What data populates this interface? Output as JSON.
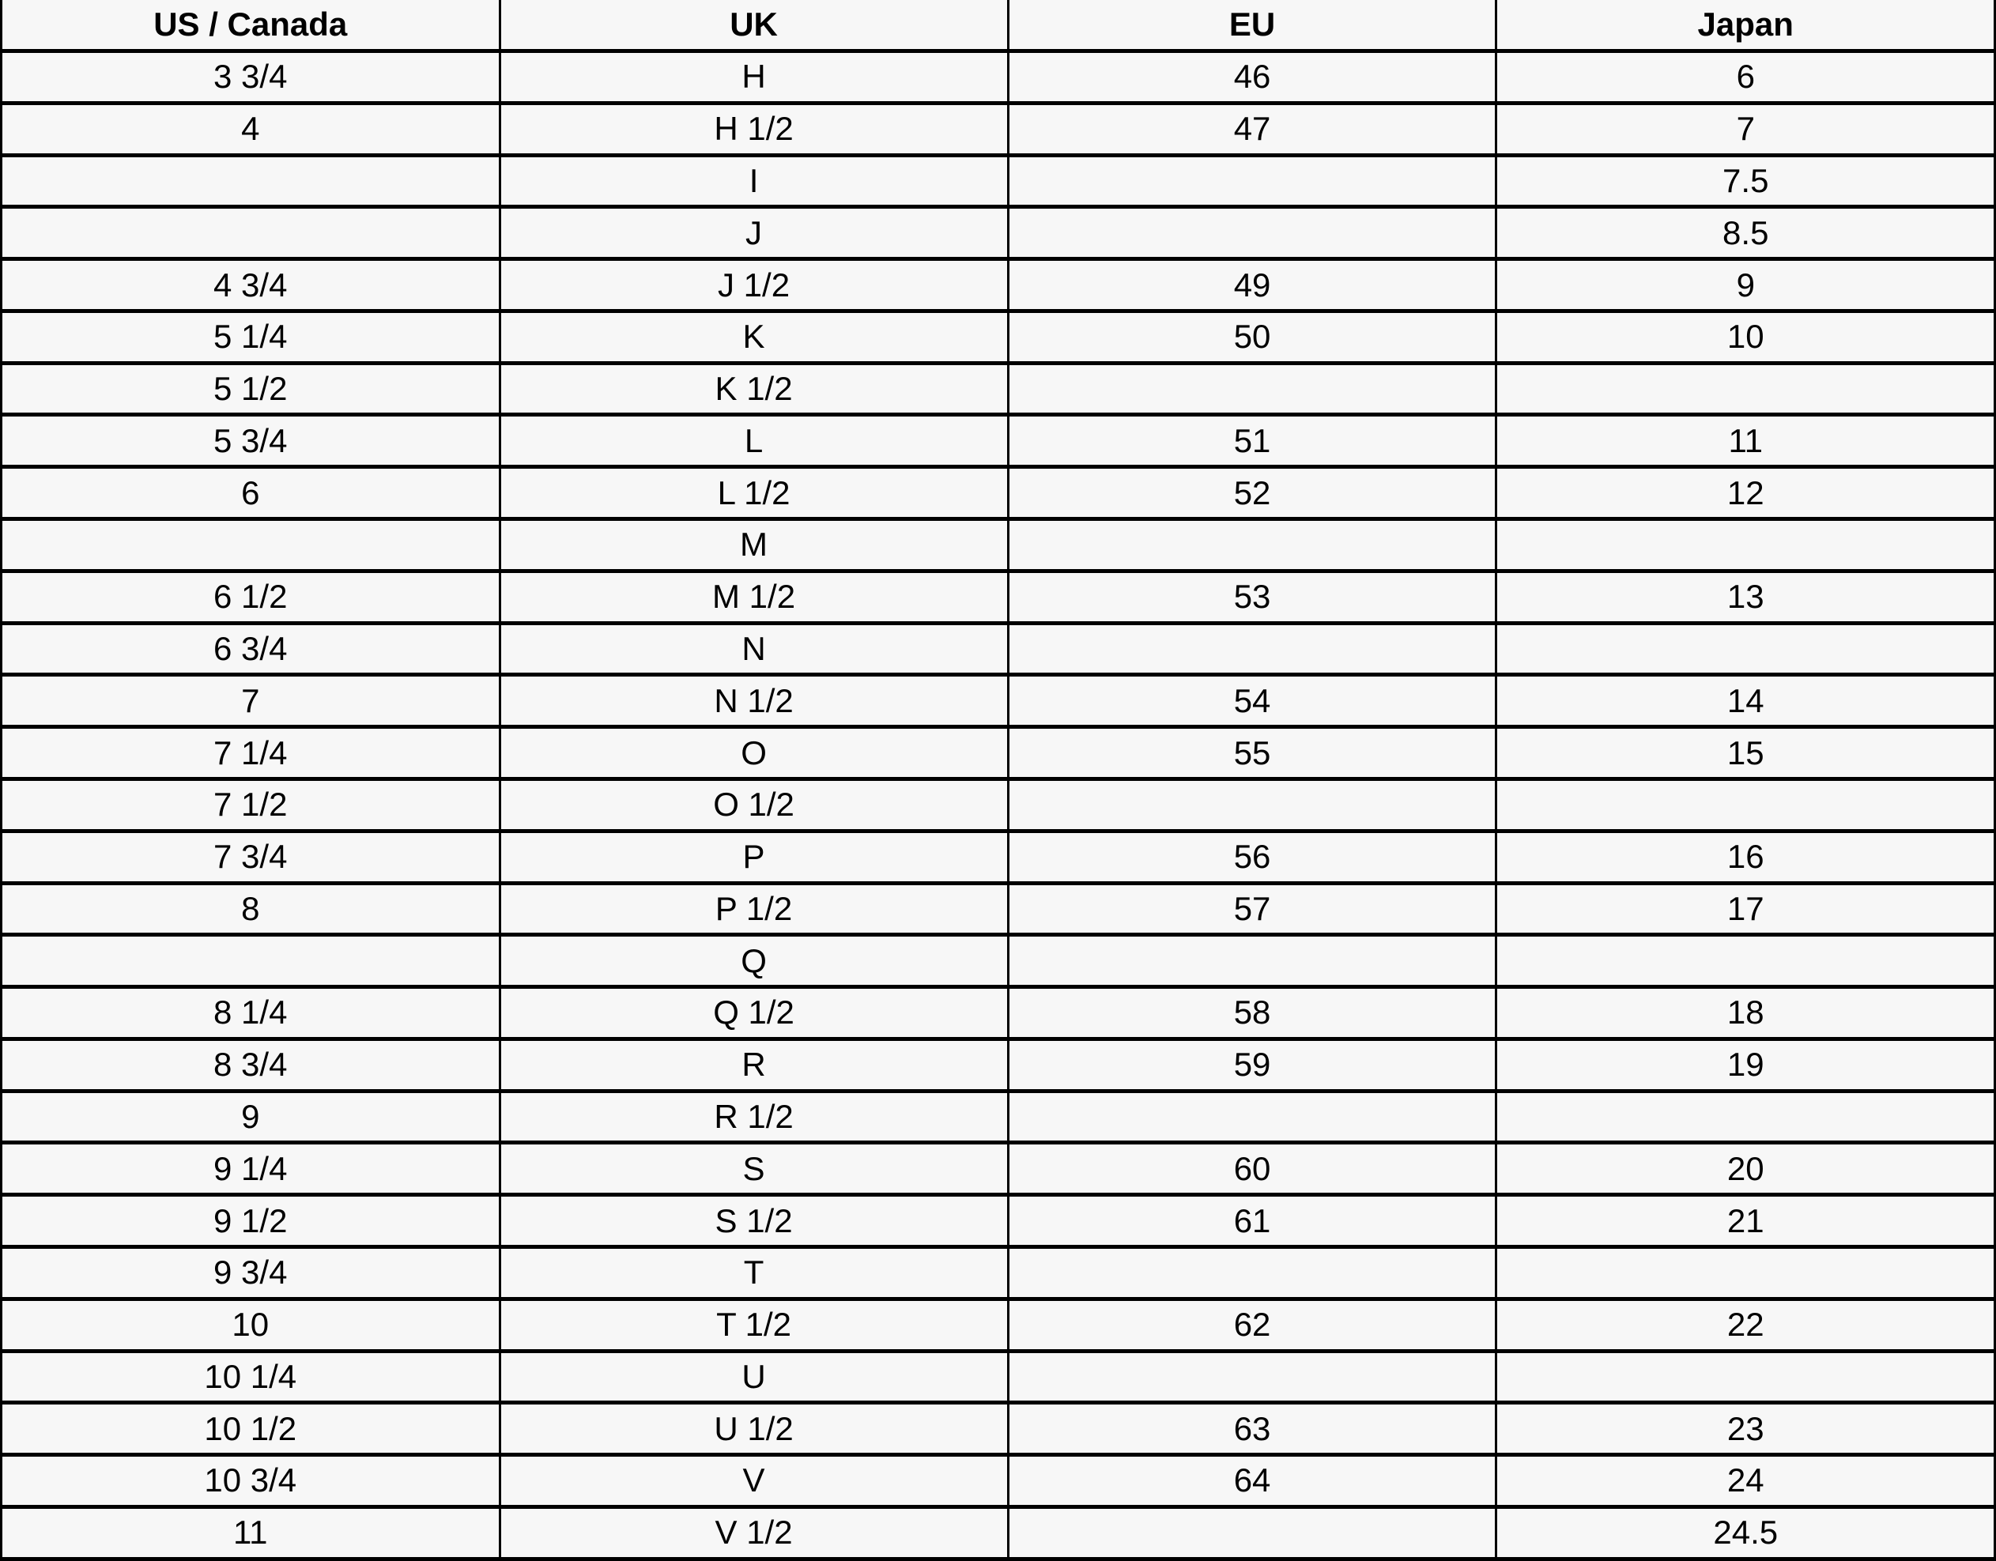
{
  "colors": {
    "cell_background": "#f7f7f7",
    "border": "#000000",
    "text": "#000000"
  },
  "chart_data": {
    "type": "table",
    "columns": [
      "US / Canada",
      "UK",
      "EU",
      "Japan"
    ],
    "rows": [
      [
        "3 3/4",
        "H",
        "46",
        "6"
      ],
      [
        "4",
        "H 1/2",
        "47",
        "7"
      ],
      [
        "",
        "I",
        "",
        "7.5"
      ],
      [
        "",
        "J",
        "",
        "8.5"
      ],
      [
        "4 3/4",
        "J 1/2",
        "49",
        "9"
      ],
      [
        "5 1/4",
        "K",
        "50",
        "10"
      ],
      [
        "5 1/2",
        "K 1/2",
        "",
        ""
      ],
      [
        "5 3/4",
        "L",
        "51",
        "11"
      ],
      [
        "6",
        "L 1/2",
        "52",
        "12"
      ],
      [
        "",
        "M",
        "",
        ""
      ],
      [
        "6 1/2",
        "M 1/2",
        "53",
        "13"
      ],
      [
        "6 3/4",
        "N",
        "",
        ""
      ],
      [
        "7",
        "N 1/2",
        "54",
        "14"
      ],
      [
        "7 1/4",
        "O",
        "55",
        "15"
      ],
      [
        "7 1/2",
        "O 1/2",
        "",
        ""
      ],
      [
        "7 3/4",
        "P",
        "56",
        "16"
      ],
      [
        "8",
        "P 1/2",
        "57",
        "17"
      ],
      [
        "",
        "Q",
        "",
        ""
      ],
      [
        "8 1/4",
        "Q 1/2",
        "58",
        "18"
      ],
      [
        "8 3/4",
        "R",
        "59",
        "19"
      ],
      [
        "9",
        "R 1/2",
        "",
        ""
      ],
      [
        "9 1/4",
        "S",
        "60",
        "20"
      ],
      [
        "9 1/2",
        "S 1/2",
        "61",
        "21"
      ],
      [
        "9 3/4",
        "T",
        "",
        ""
      ],
      [
        "10",
        "T 1/2",
        "62",
        "22"
      ],
      [
        "10 1/4",
        "U",
        "",
        ""
      ],
      [
        "10 1/2",
        "U 1/2",
        "63",
        "23"
      ],
      [
        "10 3/4",
        "V",
        "64",
        "24"
      ],
      [
        "11",
        "V 1/2",
        "",
        "24.5"
      ]
    ]
  }
}
